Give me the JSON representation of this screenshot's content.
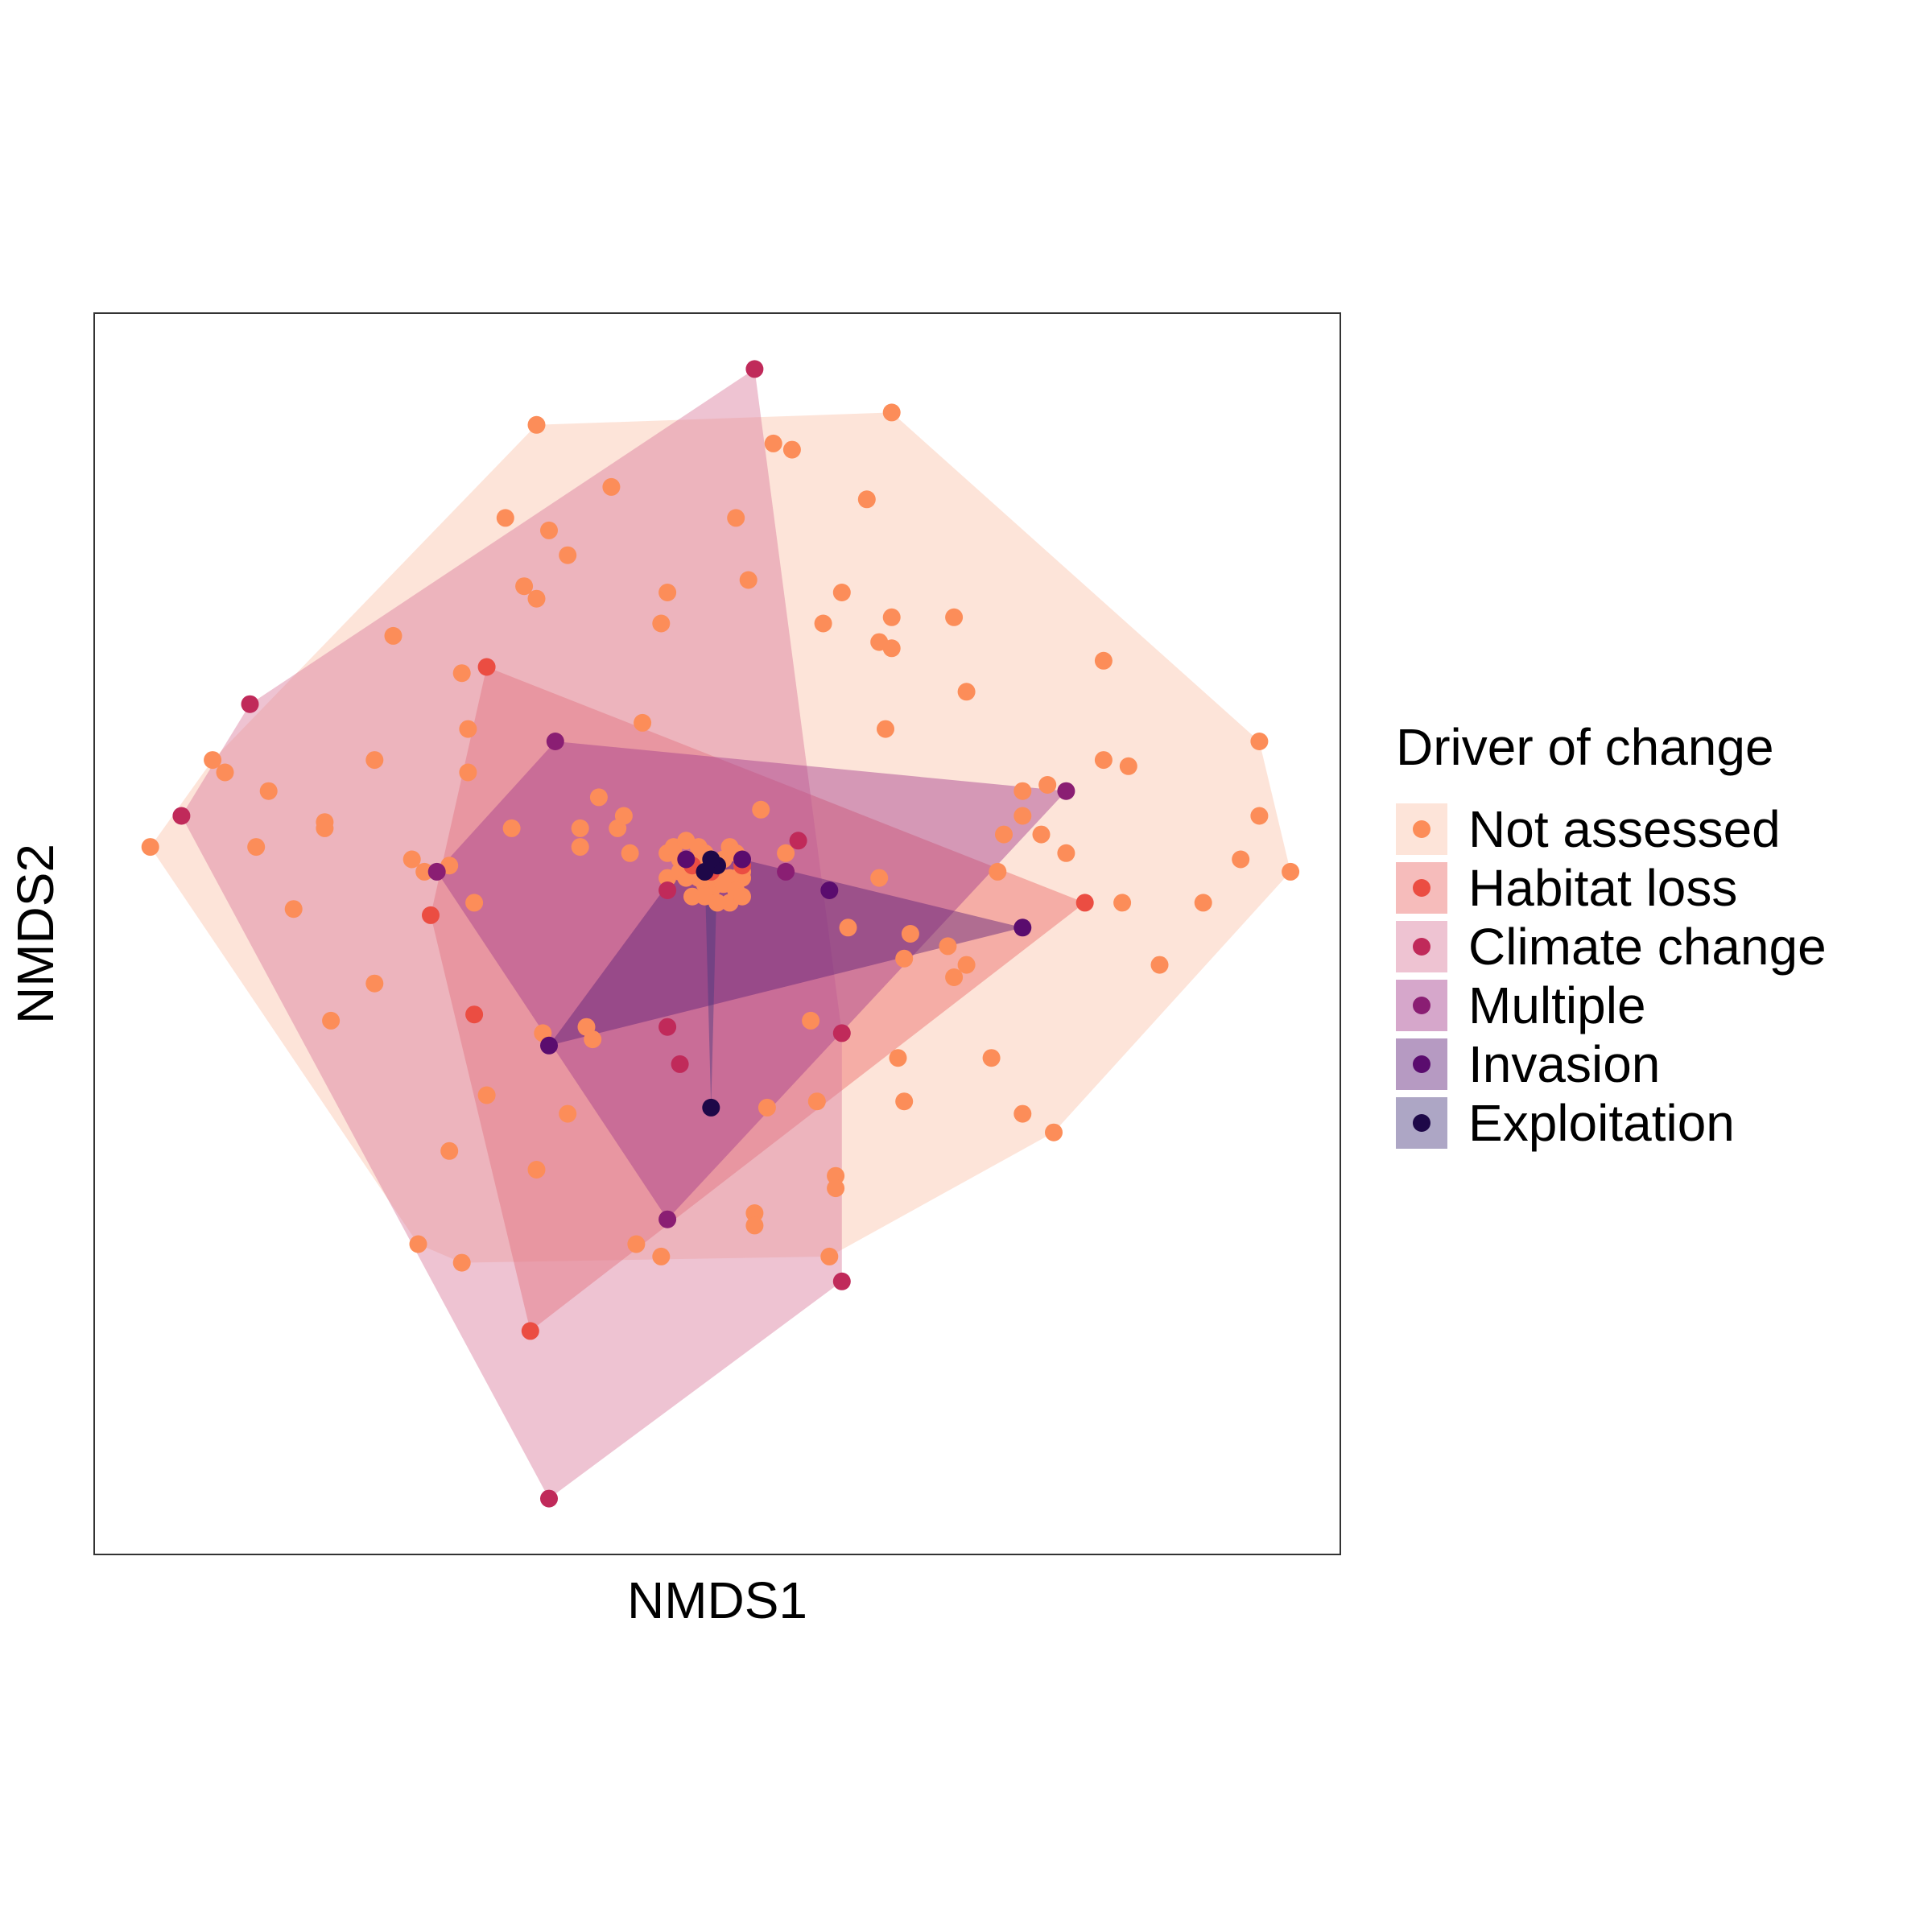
{
  "chart_data": {
    "type": "scatter",
    "subtype": "NMDS ordination with convex hulls",
    "title": "",
    "xlabel": "NMDS1",
    "ylabel": "NMDS2",
    "xlim": [
      -1.0,
      1.0
    ],
    "ylim": [
      -1.0,
      1.0
    ],
    "axis_ticks": "none",
    "grid": false,
    "legend": {
      "title": "Driver of change",
      "placement": "right"
    },
    "series": [
      {
        "name": "Not assessed",
        "color": "#FC8D59",
        "hull_color": "#FBC4AA",
        "points": [
          [
            -0.29,
            0.82
          ],
          [
            0.28,
            0.84
          ],
          [
            0.09,
            0.79
          ],
          [
            0.12,
            0.78
          ],
          [
            -0.17,
            0.72
          ],
          [
            0.24,
            0.7
          ],
          [
            -0.34,
            0.67
          ],
          [
            0.03,
            0.67
          ],
          [
            -0.27,
            0.65
          ],
          [
            -0.24,
            0.61
          ],
          [
            0.2,
            0.55
          ],
          [
            -0.31,
            0.56
          ],
          [
            -0.29,
            0.54
          ],
          [
            -0.08,
            0.55
          ],
          [
            0.05,
            0.57
          ],
          [
            0.28,
            0.51
          ],
          [
            0.38,
            0.51
          ],
          [
            0.17,
            0.5
          ],
          [
            -0.09,
            0.5
          ],
          [
            0.26,
            0.47
          ],
          [
            0.28,
            0.46
          ],
          [
            -0.52,
            0.48
          ],
          [
            0.62,
            0.44
          ],
          [
            -0.41,
            0.42
          ],
          [
            0.4,
            0.39
          ],
          [
            -0.4,
            0.33
          ],
          [
            -0.12,
            0.34
          ],
          [
            0.27,
            0.33
          ],
          [
            0.87,
            0.31
          ],
          [
            -0.55,
            0.28
          ],
          [
            -0.81,
            0.28
          ],
          [
            0.62,
            0.28
          ],
          [
            0.66,
            0.27
          ],
          [
            -0.79,
            0.26
          ],
          [
            -0.4,
            0.26
          ],
          [
            0.53,
            0.24
          ],
          [
            0.49,
            0.23
          ],
          [
            -0.72,
            0.23
          ],
          [
            -0.19,
            0.22
          ],
          [
            0.07,
            0.2
          ],
          [
            0.49,
            0.19
          ],
          [
            0.87,
            0.19
          ],
          [
            -0.63,
            0.18
          ],
          [
            -0.63,
            0.17
          ],
          [
            -0.33,
            0.17
          ],
          [
            -0.22,
            0.17
          ],
          [
            -0.16,
            0.17
          ],
          [
            0.46,
            0.16
          ],
          [
            0.52,
            0.16
          ],
          [
            -0.91,
            0.14
          ],
          [
            -0.74,
            0.14
          ],
          [
            -0.22,
            0.14
          ],
          [
            0.11,
            0.13
          ],
          [
            0.56,
            0.13
          ],
          [
            0.84,
            0.12
          ],
          [
            -0.49,
            0.12
          ],
          [
            -0.43,
            0.11
          ],
          [
            -0.47,
            0.1
          ],
          [
            0.45,
            0.1
          ],
          [
            0.92,
            0.1
          ],
          [
            0.04,
            0.09
          ],
          [
            0.26,
            0.09
          ],
          [
            0.65,
            0.05
          ],
          [
            0.78,
            0.05
          ],
          [
            -0.68,
            0.04
          ],
          [
            -0.39,
            0.05
          ],
          [
            0.21,
            0.01
          ],
          [
            0.31,
            0.0
          ],
          [
            0.37,
            -0.02
          ],
          [
            0.3,
            -0.04
          ],
          [
            0.4,
            -0.05
          ],
          [
            0.71,
            -0.05
          ],
          [
            0.38,
            -0.07
          ],
          [
            -0.55,
            -0.08
          ],
          [
            -0.62,
            -0.14
          ],
          [
            -0.28,
            -0.16
          ],
          [
            -0.21,
            -0.15
          ],
          [
            -0.2,
            -0.17
          ],
          [
            0.15,
            -0.14
          ],
          [
            0.29,
            -0.2
          ],
          [
            0.44,
            -0.2
          ],
          [
            -0.37,
            -0.26
          ],
          [
            0.3,
            -0.27
          ],
          [
            0.16,
            -0.27
          ],
          [
            0.08,
            -0.28
          ],
          [
            -0.24,
            -0.29
          ],
          [
            0.49,
            -0.29
          ],
          [
            0.54,
            -0.32
          ],
          [
            -0.43,
            -0.35
          ],
          [
            -0.29,
            -0.38
          ],
          [
            0.19,
            -0.39
          ],
          [
            0.19,
            -0.41
          ],
          [
            0.06,
            -0.45
          ],
          [
            0.06,
            -0.47
          ],
          [
            -0.48,
            -0.5
          ],
          [
            -0.13,
            -0.5
          ],
          [
            -0.09,
            -0.52
          ],
          [
            -0.41,
            -0.53
          ],
          [
            0.18,
            -0.52
          ],
          [
            -0.15,
            0.19
          ],
          [
            -0.14,
            0.13
          ],
          [
            -0.08,
            0.13
          ],
          [
            -0.07,
            0.14
          ],
          [
            -0.06,
            0.12
          ],
          [
            -0.05,
            0.15
          ],
          [
            -0.04,
            0.12
          ],
          [
            -0.03,
            0.14
          ],
          [
            -0.02,
            0.13
          ],
          [
            -0.01,
            0.11
          ],
          [
            0.0,
            0.1
          ],
          [
            0.01,
            0.12
          ],
          [
            0.02,
            0.14
          ],
          [
            0.03,
            0.13
          ],
          [
            -0.03,
            0.09
          ],
          [
            -0.02,
            0.08
          ],
          [
            -0.01,
            0.07
          ],
          [
            0.0,
            0.08
          ],
          [
            0.01,
            0.08
          ],
          [
            0.02,
            0.09
          ],
          [
            0.04,
            0.1
          ],
          [
            -0.06,
            0.1
          ],
          [
            -0.05,
            0.09
          ],
          [
            -0.04,
            0.06
          ],
          [
            -0.02,
            0.06
          ],
          [
            0.0,
            0.05
          ],
          [
            0.02,
            0.05
          ],
          [
            0.03,
            0.07
          ],
          [
            -0.03,
            0.11
          ],
          [
            0.04,
            0.06
          ],
          [
            -0.08,
            0.09
          ]
        ]
      },
      {
        "name": "Habitat loss",
        "color": "#EB4D42",
        "hull_color": "#EC6A68",
        "points": [
          [
            -0.37,
            0.43
          ],
          [
            0.59,
            0.05
          ],
          [
            -0.39,
            -0.13
          ],
          [
            -0.3,
            -0.64
          ],
          [
            -0.46,
            0.03
          ],
          [
            -0.04,
            0.11
          ],
          [
            -0.01,
            0.1
          ],
          [
            0.04,
            0.11
          ]
        ]
      },
      {
        "name": "Climate change",
        "color": "#C02A5A",
        "hull_color": "#D97A9C",
        "points": [
          [
            0.06,
            0.91
          ],
          [
            -0.75,
            0.37
          ],
          [
            -0.86,
            0.19
          ],
          [
            -0.27,
            -0.91
          ],
          [
            0.2,
            -0.56
          ],
          [
            0.2,
            -0.16
          ],
          [
            0.13,
            0.15
          ],
          [
            -0.08,
            -0.15
          ],
          [
            -0.06,
            -0.21
          ],
          [
            -0.08,
            0.07
          ]
        ]
      },
      {
        "name": "Multiple",
        "color": "#8A1E73",
        "hull_color": "#A33B8C",
        "points": [
          [
            -0.26,
            0.31
          ],
          [
            0.56,
            0.23
          ],
          [
            -0.45,
            0.1
          ],
          [
            -0.08,
            -0.46
          ],
          [
            0.11,
            0.1
          ]
        ]
      },
      {
        "name": "Invasion",
        "color": "#5A0C6E",
        "hull_color": "#5E1E78",
        "points": [
          [
            -0.27,
            -0.18
          ],
          [
            0.18,
            0.07
          ],
          [
            0.49,
            0.01
          ],
          [
            0.04,
            0.12
          ],
          [
            -0.05,
            0.12
          ]
        ]
      },
      {
        "name": "Exploitation",
        "color": "#1E0848",
        "hull_color": "#4A3A7E",
        "points": [
          [
            -0.01,
            -0.28
          ],
          [
            -0.02,
            0.1
          ],
          [
            0.0,
            0.11
          ],
          [
            -0.01,
            0.12
          ]
        ]
      }
    ]
  }
}
